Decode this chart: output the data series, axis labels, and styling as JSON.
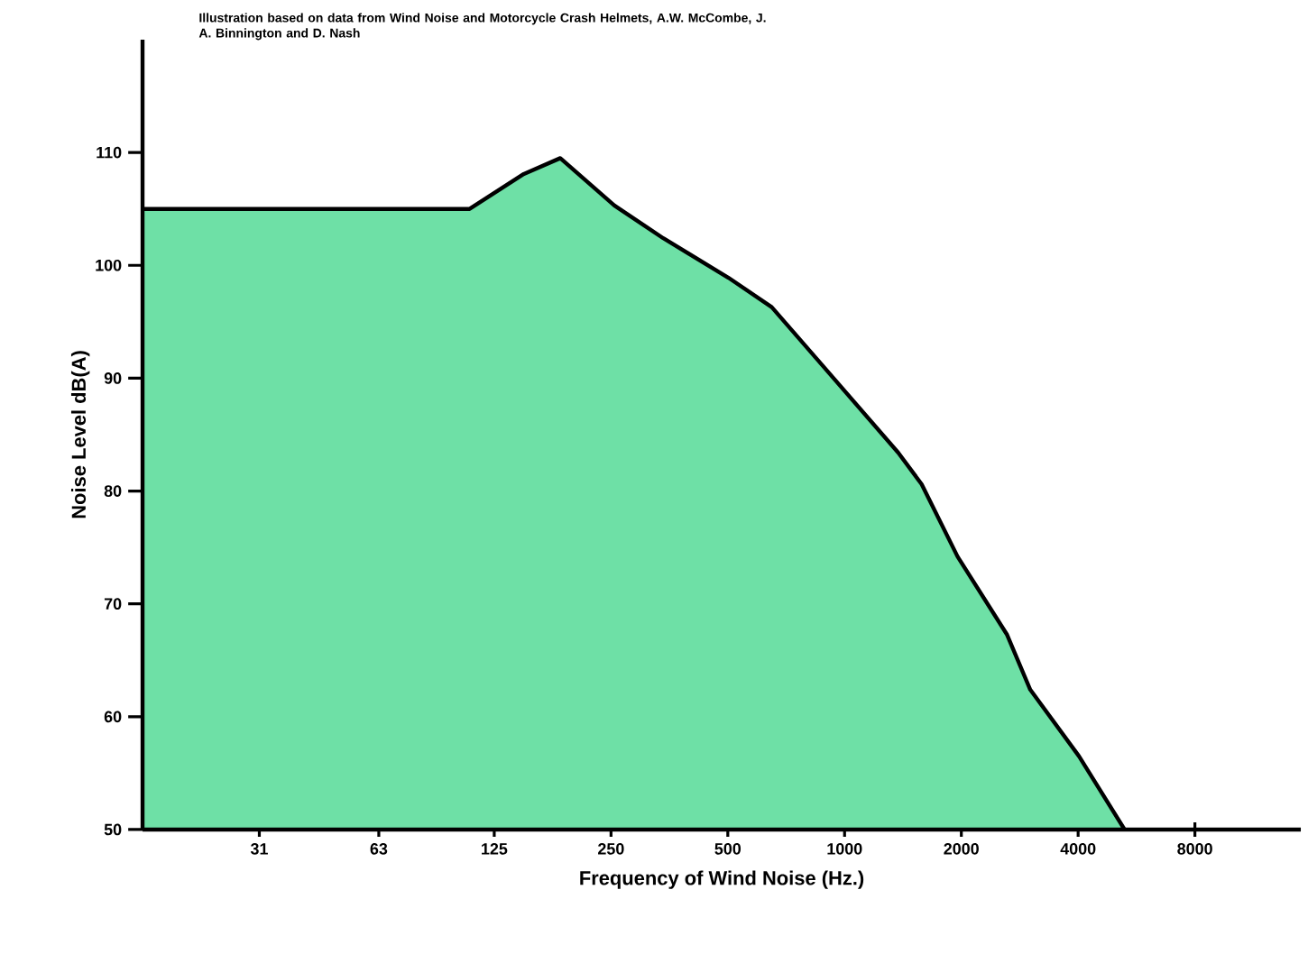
{
  "chart_data": {
    "type": "area",
    "title": "Illustration based on data from Wind Noise and Motorcycle Crash Helmets, A.W. McCombe, J. A. Binnington and D. Nash",
    "xlabel": "Frequency of Wind Noise (Hz.)",
    "ylabel": "Noise Level dB(A)",
    "log": "x",
    "xlim": [
      15.5,
      15000
    ],
    "ylim": [
      50,
      120
    ],
    "xticks": [
      31,
      63,
      125,
      250,
      500,
      1000,
      2000,
      4000,
      8000
    ],
    "yticks": [
      50,
      60,
      70,
      80,
      90,
      100,
      110
    ],
    "color": "#6ee0a6",
    "x": [
      15.5,
      108,
      149,
      185,
      255,
      341,
      502,
      649,
      894,
      1375,
      1580,
      1955,
      2620,
      3010,
      4020,
      5270
    ],
    "values": [
      105,
      105,
      108.1,
      109.5,
      105.3,
      102.4,
      98.9,
      96.3,
      90.8,
      83.4,
      80.6,
      74.2,
      67.3,
      62.4,
      56.5,
      50
    ]
  }
}
